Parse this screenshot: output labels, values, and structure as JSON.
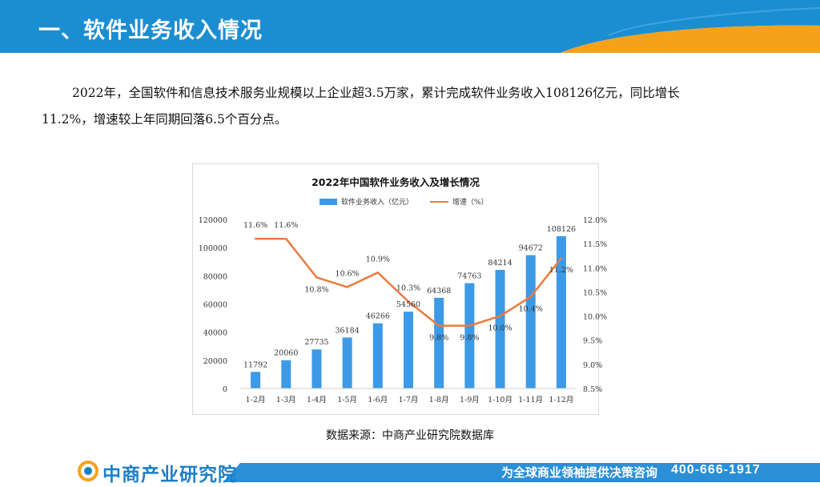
{
  "header": {
    "title": "一、软件业务收入情况"
  },
  "paragraph": {
    "line1": "2022年，全国软件和信息技术服务业规模以上企业超3.5万家，累计完成软件业务收入108126亿元，同比增长",
    "line2": "11.2%，增速较上年同期回落6.5个百分点。"
  },
  "chart_data": {
    "type": "bar+line",
    "title": "2022年中国软件业务收入及增长情况",
    "categories": [
      "1-2月",
      "1-3月",
      "1-4月",
      "1-5月",
      "1-6月",
      "1-7月",
      "1-8月",
      "1-9月",
      "1-10月",
      "1-11月",
      "1-12月"
    ],
    "series": [
      {
        "name": "软件业务收入（亿元）",
        "type": "bar",
        "axis": "left",
        "color": "#3c9ae6",
        "values": [
          11792,
          20060,
          27735,
          36184,
          46266,
          54560,
          64368,
          74763,
          84214,
          94672,
          108126
        ]
      },
      {
        "name": "增速（%）",
        "type": "line",
        "axis": "right",
        "color": "#ec7a3c",
        "values": [
          11.6,
          11.6,
          10.8,
          10.6,
          10.9,
          10.3,
          9.8,
          9.8,
          10.0,
          10.4,
          11.2
        ]
      }
    ],
    "left_axis": {
      "min": 0,
      "max": 120000,
      "step": 20000,
      "ticks": [
        "0",
        "20000",
        "40000",
        "60000",
        "80000",
        "100000",
        "120000"
      ]
    },
    "right_axis": {
      "min": 8.5,
      "max": 12.0,
      "step": 0.5,
      "ticks": [
        "8.5%",
        "9.0%",
        "9.5%",
        "10.0%",
        "10.5%",
        "11.0%",
        "11.5%",
        "12.0%"
      ]
    },
    "bar_labels": [
      "11792",
      "20060",
      "27735",
      "36184",
      "46266",
      "54560",
      "64368",
      "74763",
      "84214",
      "94672",
      "108126"
    ],
    "line_labels": [
      "11.6%",
      "11.6%",
      "10.8%",
      "10.6%",
      "10.9%",
      "10.3%",
      "9.8%",
      "9.8%",
      "10.0%",
      "10.4%",
      "11.2%"
    ],
    "legend_position": "top-center"
  },
  "source": "数据来源：中商产业研究院数据库",
  "footer": {
    "logo": "中商产业研究院",
    "slogan": "为全球商业领袖提供决策咨询",
    "phone": "400-666-1917"
  },
  "colors": {
    "header_blue": "#1b8ed2",
    "header_orange": "#f5a21b",
    "footer_blue": "#2a8fd6"
  }
}
